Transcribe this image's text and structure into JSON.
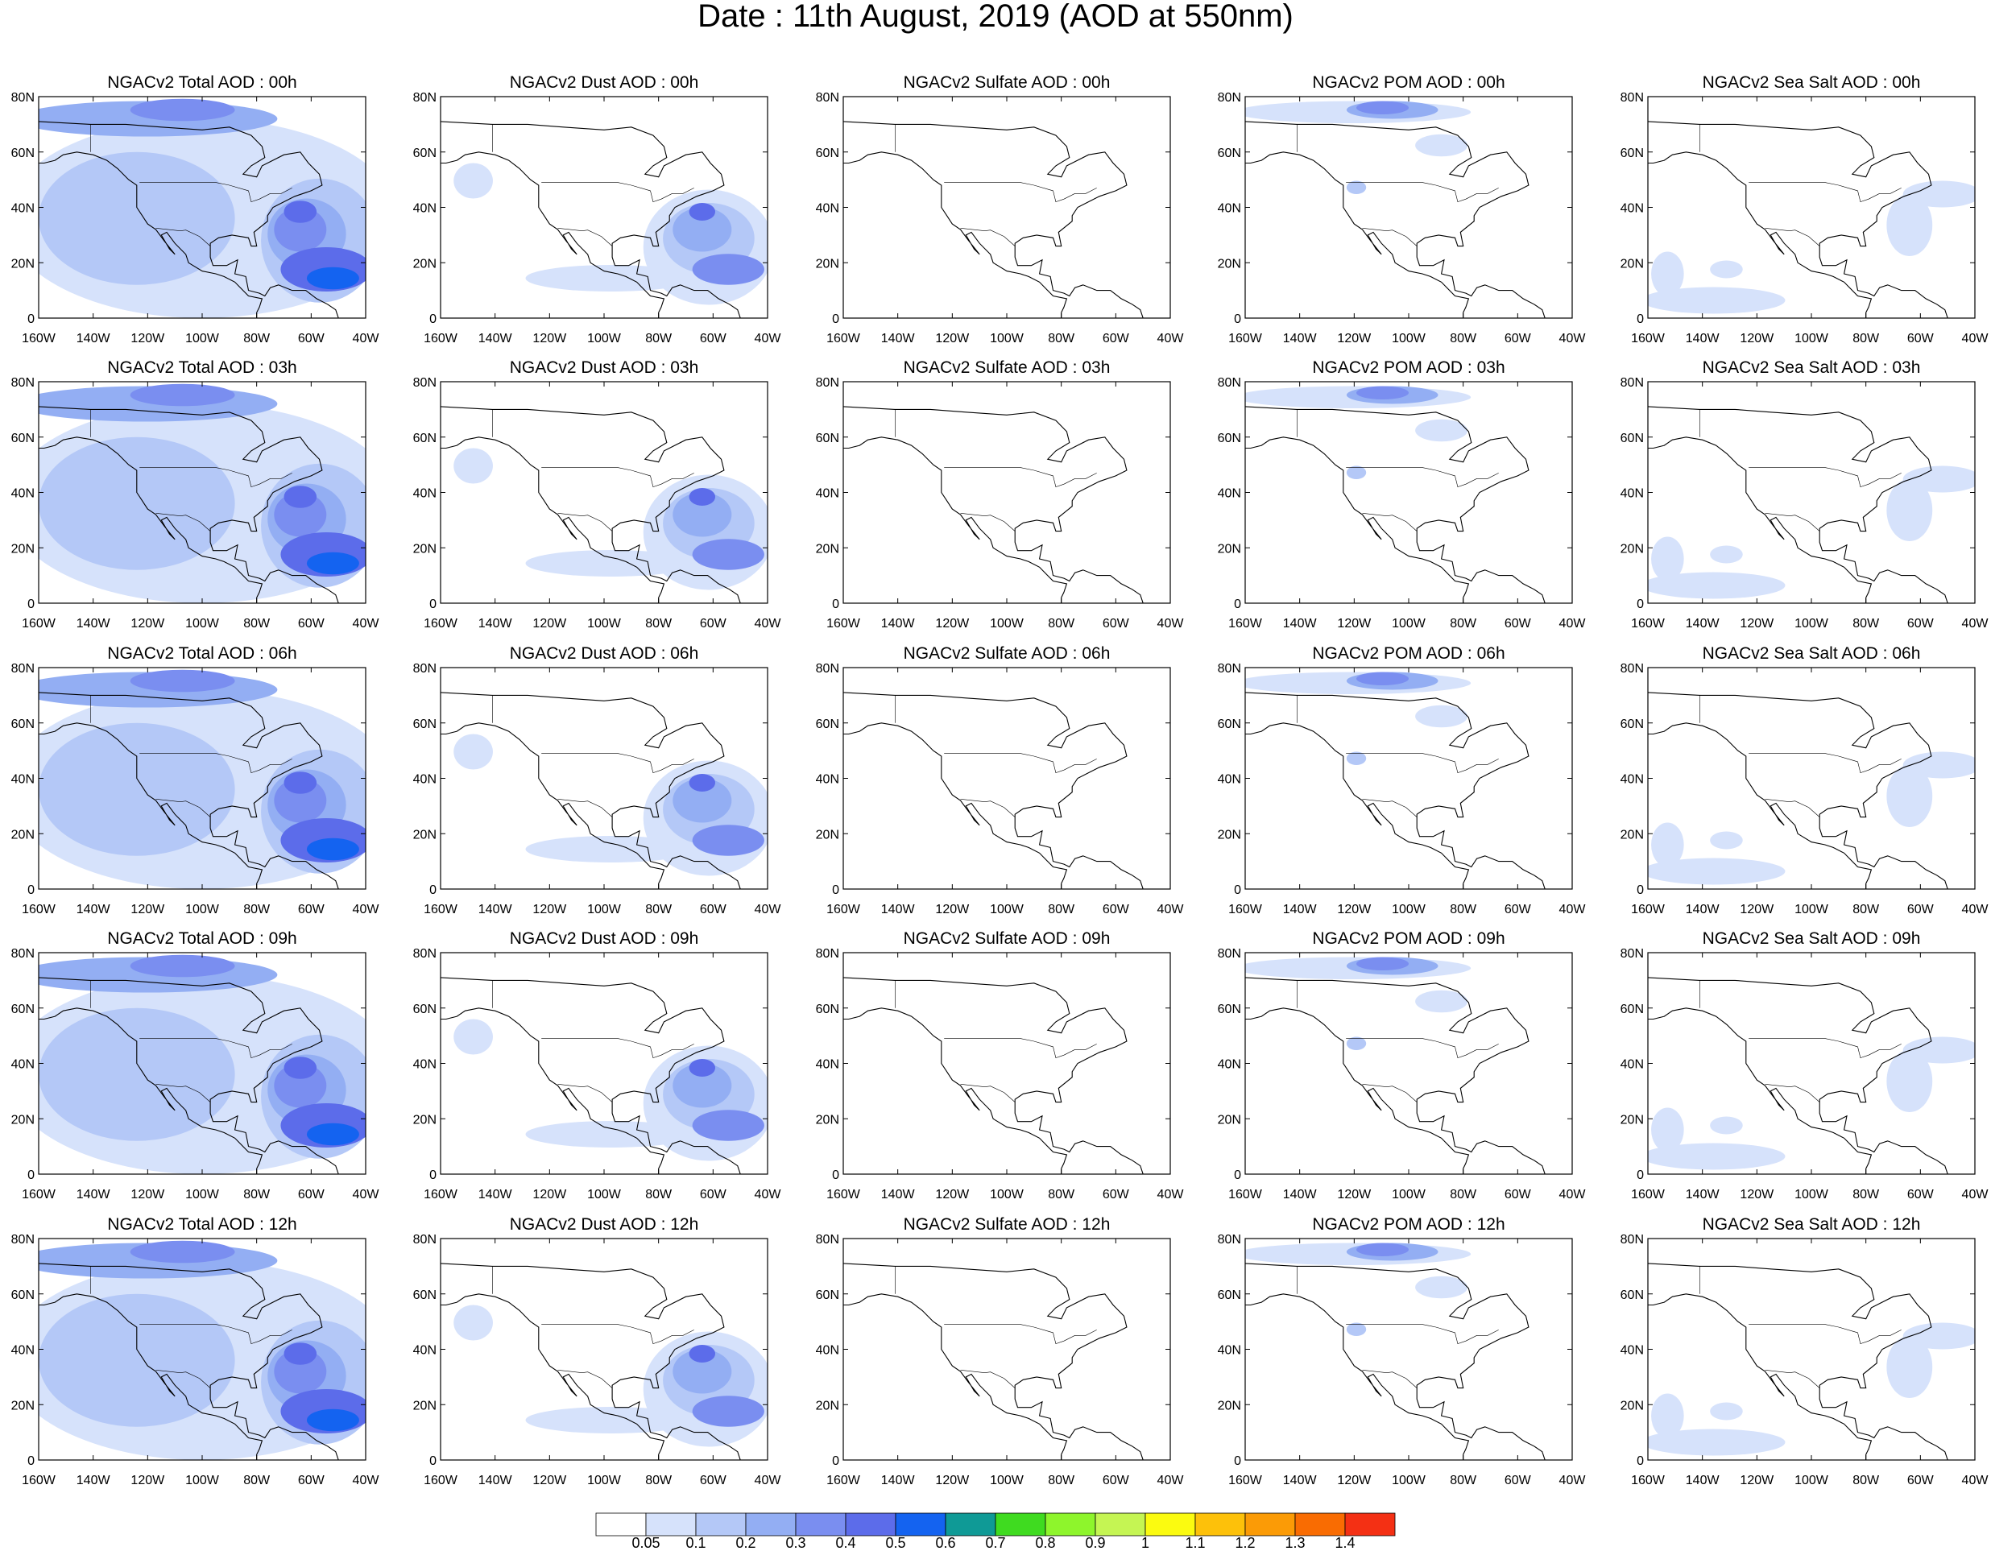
{
  "title": "Date : 11th August, 2019 (AOD at 550nm)",
  "panels": [
    [
      "NGACv2 Total AOD : 00h",
      "NGACv2 Dust AOD : 00h",
      "NGACv2 Sulfate AOD : 00h",
      "NGACv2 POM AOD : 00h",
      "NGACv2 Sea Salt AOD : 00h"
    ],
    [
      "NGACv2 Total AOD : 03h",
      "NGACv2 Dust AOD : 03h",
      "NGACv2 Sulfate AOD : 03h",
      "NGACv2 POM AOD : 03h",
      "NGACv2 Sea Salt AOD : 03h"
    ],
    [
      "NGACv2 Total AOD : 06h",
      "NGACv2 Dust AOD : 06h",
      "NGACv2 Sulfate AOD : 06h",
      "NGACv2 POM AOD : 06h",
      "NGACv2 Sea Salt AOD : 06h"
    ],
    [
      "NGACv2 Total AOD : 09h",
      "NGACv2 Dust AOD : 09h",
      "NGACv2 Sulfate AOD : 09h",
      "NGACv2 POM AOD : 09h",
      "NGACv2 Sea Salt  AOD : 09h"
    ],
    [
      "NGACv2 Total AOD  : 12h",
      "NGACv2 Dust AOD : 12h",
      "NGACv2 Sulfate AOD : 12h",
      "NGACv2 POM  AOD : 12h",
      "NGACv2 Sea Salt  AOD : 12h"
    ]
  ],
  "lat_ticks": [
    "0",
    "20N",
    "40N",
    "60N",
    "80N"
  ],
  "lon_ticks": [
    "160W",
    "140W",
    "120W",
    "100W",
    "80W",
    "60W",
    "40W"
  ],
  "colorbar": {
    "labels": [
      "0.05",
      "0.1",
      "0.2",
      "0.3",
      "0.4",
      "0.5",
      "0.6",
      "0.7",
      "0.8",
      "0.9",
      "1",
      "1.1",
      "1.2",
      "1.3",
      "1.4"
    ],
    "colors": [
      "#ffffff",
      "#d6e2fb",
      "#b4c8f7",
      "#93aef3",
      "#7a8ef0",
      "#5c6cea",
      "#1463f0",
      "#0f9a96",
      "#3fdb20",
      "#8ef52c",
      "#c5f553",
      "#fbfb10",
      "#fdc10a",
      "#fb9b06",
      "#f96c02",
      "#f43014"
    ]
  }
}
